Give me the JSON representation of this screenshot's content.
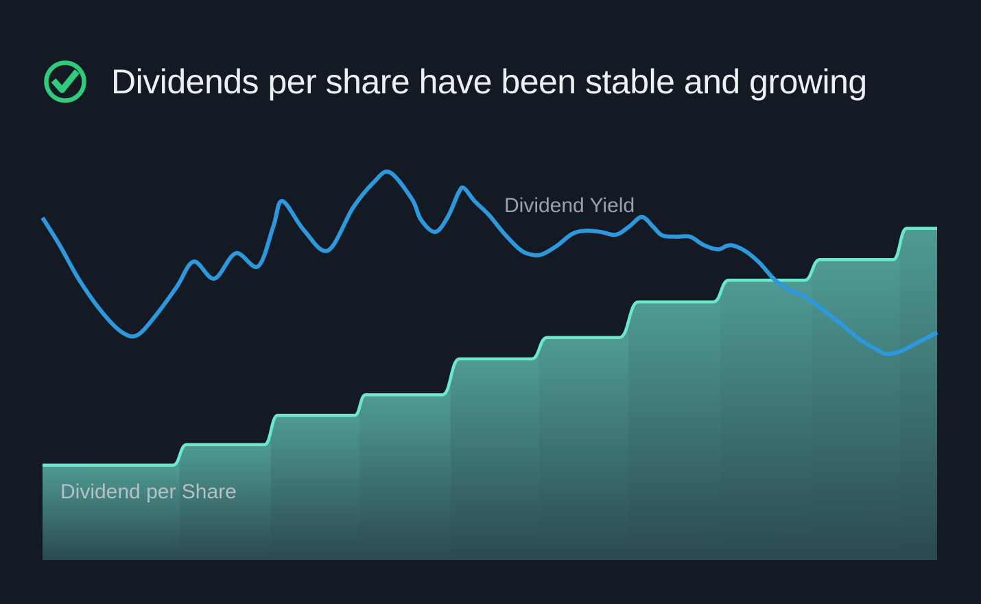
{
  "header": {
    "icon": "check-circle-icon",
    "title": "Dividends per share have been stable and growing"
  },
  "colors": {
    "background": "#131A24",
    "title_text": "#EDF0F3",
    "check_green": "#2FCC7C",
    "yield_line": "#2D98DC",
    "dps_line": "#6BE8CE",
    "dps_fill_top": "#4F9B93",
    "dps_fill_bottom": "#2B4950",
    "yield_label_text": "#99A2AA",
    "dps_label_text": "#B6C0C4"
  },
  "chart_labels": {
    "yield": "Dividend Yield",
    "dps": "Dividend per Share"
  },
  "chart_data": {
    "type": "area",
    "title": "Dividends per share have been stable and growing",
    "xlabel": "",
    "ylabel": "",
    "units": "relative (no axes or tick labels shown in image)",
    "x_range": [
      0,
      100
    ],
    "y_range": [
      0,
      100
    ],
    "grid": false,
    "legend_position": "inline-labels",
    "series": [
      {
        "name": "Dividend Yield",
        "type": "line",
        "color": "#2D98DC",
        "points": [
          [
            0,
            86.6
          ],
          [
            1.9,
            79.7
          ],
          [
            4.2,
            70.5
          ],
          [
            6.8,
            62.3
          ],
          [
            8.9,
            57.6
          ],
          [
            10.6,
            56.9
          ],
          [
            12.7,
            62.0
          ],
          [
            15.0,
            69.1
          ],
          [
            16.9,
            75.5
          ],
          [
            19.2,
            71.2
          ],
          [
            21.6,
            77.6
          ],
          [
            24.1,
            74.3
          ],
          [
            25.8,
            84.4
          ],
          [
            26.8,
            90.8
          ],
          [
            29.2,
            83.5
          ],
          [
            31.9,
            78.3
          ],
          [
            34.7,
            89.1
          ],
          [
            37.0,
            95.5
          ],
          [
            38.8,
            98.1
          ],
          [
            41.3,
            91.3
          ],
          [
            42.3,
            86.1
          ],
          [
            43.9,
            83.0
          ],
          [
            45.3,
            86.8
          ],
          [
            46.5,
            92.9
          ],
          [
            47.1,
            94.1
          ],
          [
            48.3,
            90.8
          ],
          [
            49.9,
            87.3
          ],
          [
            51.6,
            82.6
          ],
          [
            53.4,
            78.5
          ],
          [
            54.6,
            77.3
          ],
          [
            55.8,
            77.3
          ],
          [
            57.5,
            79.5
          ],
          [
            59.2,
            82.5
          ],
          [
            60.7,
            83.3
          ],
          [
            62.4,
            83.0
          ],
          [
            64.1,
            82.3
          ],
          [
            65.6,
            84.4
          ],
          [
            67.0,
            86.8
          ],
          [
            68.3,
            84.2
          ],
          [
            69.3,
            82.1
          ],
          [
            70.9,
            81.8
          ],
          [
            72.4,
            81.8
          ],
          [
            73.9,
            79.7
          ],
          [
            75.5,
            78.6
          ],
          [
            76.5,
            79.5
          ],
          [
            77.3,
            79.5
          ],
          [
            78.6,
            78.1
          ],
          [
            80.1,
            75.3
          ],
          [
            81.9,
            70.8
          ],
          [
            83.6,
            68.2
          ],
          [
            85.1,
            66.7
          ],
          [
            86.7,
            64.2
          ],
          [
            89.0,
            60.2
          ],
          [
            91.3,
            55.9
          ],
          [
            93.2,
            53.3
          ],
          [
            94.4,
            52.1
          ],
          [
            95.9,
            52.8
          ],
          [
            97.4,
            54.5
          ],
          [
            100,
            57.6
          ]
        ]
      },
      {
        "name": "Dividend per Share",
        "type": "step-area",
        "color": "#6BE8CE",
        "steps": [
          {
            "from": 0,
            "to": 14.6,
            "value": 24.0
          },
          {
            "from": 16.1,
            "to": 24.8,
            "value": 29.2
          },
          {
            "from": 26.3,
            "to": 34.9,
            "value": 36.6
          },
          {
            "from": 36.1,
            "to": 44.7,
            "value": 41.8
          },
          {
            "from": 46.6,
            "to": 54.7,
            "value": 50.9
          },
          {
            "from": 56.4,
            "to": 64.5,
            "value": 56.3
          },
          {
            "from": 66.6,
            "to": 75.0,
            "value": 65.3
          },
          {
            "from": 76.7,
            "to": 85.2,
            "value": 70.8
          },
          {
            "from": 86.9,
            "to": 95.1,
            "value": 76.0
          },
          {
            "from": 96.6,
            "to": 100,
            "value": 83.9
          }
        ]
      }
    ]
  }
}
